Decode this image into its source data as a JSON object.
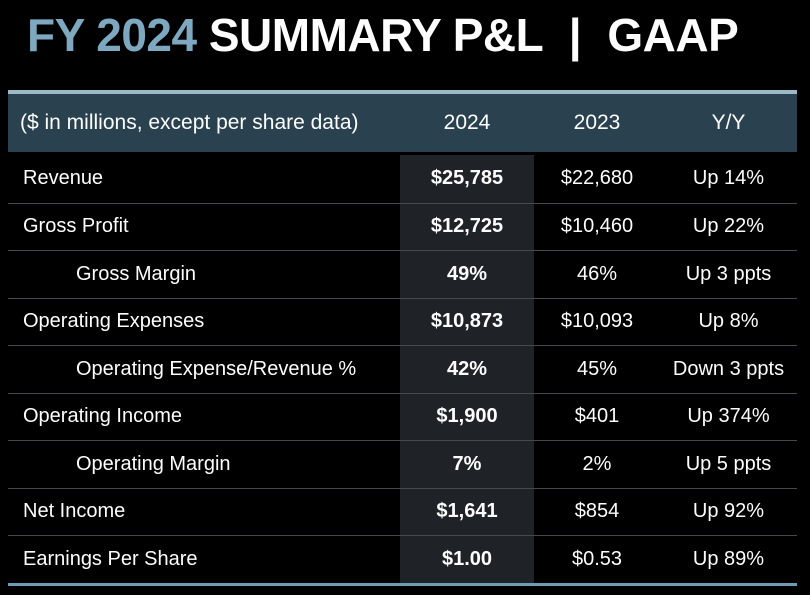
{
  "title": {
    "highlight": "FY 2024",
    "main": "SUMMARY P&L",
    "separator": "|",
    "suffix": "GAAP"
  },
  "table": {
    "header": {
      "label": "($ in millions, except per share data)",
      "col_2024": "2024",
      "col_2023": "2023",
      "col_yy": "Y/Y"
    },
    "rows": [
      {
        "label": "Revenue",
        "indent": false,
        "v2024": "$25,785",
        "v2023": "$22,680",
        "yy": "Up 14%"
      },
      {
        "label": "Gross Profit",
        "indent": false,
        "v2024": "$12,725",
        "v2023": "$10,460",
        "yy": "Up 22%"
      },
      {
        "label": "Gross Margin",
        "indent": true,
        "v2024": "49%",
        "v2023": "46%",
        "yy": "Up 3 ppts"
      },
      {
        "label": "Operating Expenses",
        "indent": false,
        "v2024": "$10,873",
        "v2023": "$10,093",
        "yy": "Up 8%"
      },
      {
        "label": "Operating Expense/Revenue %",
        "indent": true,
        "v2024": "42%",
        "v2023": "45%",
        "yy": "Down 3 ppts"
      },
      {
        "label": "Operating Income",
        "indent": false,
        "v2024": "$1,900",
        "v2023": "$401",
        "yy": "Up 374%"
      },
      {
        "label": "Operating Margin",
        "indent": true,
        "v2024": "7%",
        "v2023": "2%",
        "yy": "Up 5 ppts"
      },
      {
        "label": "Net Income",
        "indent": false,
        "v2024": "$1,641",
        "v2023": "$854",
        "yy": "Up 92%"
      },
      {
        "label": "Earnings Per Share",
        "indent": false,
        "v2024": "$1.00",
        "v2023": "$0.53",
        "yy": "Up 89%"
      }
    ]
  },
  "colors": {
    "background": "#000000",
    "title_highlight": "#7ea8c0",
    "header_background": "#2a424f",
    "header_top_border": "#9bb9c8",
    "highlight_column": "#1f2327",
    "row_separator": "#464a4e",
    "bottom_rule": "#6d9cb5",
    "text": "#fdfdfd"
  }
}
